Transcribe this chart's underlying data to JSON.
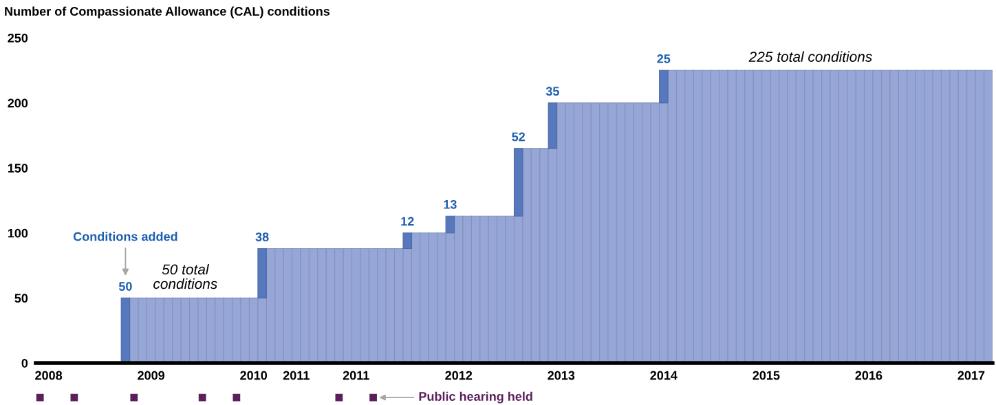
{
  "chart_data": [
    {
      "type": "bar",
      "title": "Number of Compassionate Allowance (CAL) conditions",
      "stacked": true,
      "grid": false,
      "legend": false,
      "categories": [
        null,
        "2008",
        null,
        null,
        null,
        null,
        null,
        null,
        null,
        null,
        null,
        null,
        null,
        "2009",
        null,
        null,
        null,
        null,
        null,
        null,
        null,
        null,
        null,
        null,
        null,
        "2010",
        null,
        null,
        null,
        null,
        "2011",
        null,
        null,
        null,
        null,
        null,
        null,
        "2011",
        null,
        null,
        null,
        null,
        null,
        null,
        null,
        null,
        null,
        null,
        null,
        "2012",
        null,
        null,
        null,
        null,
        null,
        null,
        null,
        null,
        null,
        null,
        null,
        "2013",
        null,
        null,
        null,
        null,
        null,
        null,
        null,
        null,
        null,
        null,
        null,
        "2014",
        null,
        null,
        null,
        null,
        null,
        null,
        null,
        null,
        null,
        null,
        null,
        "2015",
        null,
        null,
        null,
        null,
        null,
        null,
        null,
        null,
        null,
        null,
        null,
        "2016",
        null,
        null,
        null,
        null,
        null,
        null,
        null,
        null,
        null,
        null,
        null,
        "2017",
        null,
        null
      ],
      "ylim": [
        0,
        250
      ],
      "yticks": [
        0,
        50,
        100,
        150,
        200,
        250
      ],
      "series": [
        {
          "color": "#96a6d6",
          "values": [
            null,
            null,
            null,
            null,
            null,
            null,
            null,
            null,
            null,
            null,
            0,
            50,
            50,
            50,
            50,
            50,
            50,
            50,
            50,
            50,
            50,
            50,
            50,
            50,
            50,
            50,
            50,
            88,
            88,
            88,
            88,
            88,
            88,
            88,
            88,
            88,
            88,
            88,
            88,
            88,
            88,
            88,
            88,
            88,
            100,
            100,
            100,
            100,
            100,
            113,
            113,
            113,
            113,
            113,
            113,
            113,
            113,
            165,
            165,
            165,
            165,
            200,
            200,
            200,
            200,
            200,
            200,
            200,
            200,
            200,
            200,
            200,
            200,
            200,
            225,
            225,
            225,
            225,
            225,
            225,
            225,
            225,
            225,
            225,
            225,
            225,
            225,
            225,
            225,
            225,
            225,
            225,
            225,
            225,
            225,
            225,
            225,
            225,
            225,
            225,
            225,
            225,
            225,
            225,
            225,
            225,
            225,
            225,
            225,
            225,
            225,
            225
          ]
        },
        {
          "color": "#5878bd",
          "values": [
            null,
            null,
            null,
            null,
            null,
            null,
            null,
            null,
            null,
            null,
            50,
            null,
            null,
            null,
            null,
            null,
            null,
            null,
            null,
            null,
            null,
            null,
            null,
            null,
            null,
            null,
            38,
            null,
            null,
            null,
            null,
            null,
            null,
            null,
            null,
            null,
            null,
            null,
            null,
            null,
            null,
            null,
            null,
            12,
            null,
            null,
            null,
            null,
            13,
            null,
            null,
            null,
            null,
            null,
            null,
            null,
            52,
            null,
            null,
            null,
            35,
            null,
            null,
            null,
            null,
            null,
            null,
            null,
            null,
            null,
            null,
            null,
            null,
            25,
            null,
            null,
            null,
            null,
            null,
            null,
            null,
            null,
            null,
            null,
            null,
            null,
            null,
            null,
            null,
            null,
            null,
            null,
            null,
            null,
            null,
            null,
            null,
            null,
            null,
            null,
            null,
            null,
            null,
            null,
            null,
            null,
            null,
            null,
            null,
            null,
            null,
            null
          ],
          "value_labels": [
            null,
            null,
            null,
            null,
            null,
            null,
            null,
            null,
            null,
            null,
            "50",
            null,
            null,
            null,
            null,
            null,
            null,
            null,
            null,
            null,
            null,
            null,
            null,
            null,
            null,
            null,
            "38",
            null,
            null,
            null,
            null,
            null,
            null,
            null,
            null,
            null,
            null,
            null,
            null,
            null,
            null,
            null,
            null,
            "12",
            null,
            null,
            null,
            null,
            "13",
            null,
            null,
            null,
            null,
            null,
            null,
            null,
            "52",
            null,
            null,
            null,
            "35",
            null,
            null,
            null,
            null,
            null,
            null,
            null,
            null,
            null,
            null,
            null,
            null,
            "25",
            null,
            null,
            null,
            null,
            null,
            null,
            null,
            null,
            null,
            null,
            null,
            null,
            null,
            null,
            null,
            null,
            null,
            null,
            null,
            null,
            null,
            null,
            null,
            null,
            null,
            null,
            null,
            null,
            null,
            null,
            null,
            null,
            null,
            null,
            null,
            null,
            null,
            null
          ]
        }
      ],
      "annotations": [
        "Conditions added",
        "50 total\nconditions",
        "225 total conditions",
        "Public hearing held"
      ]
    }
  ]
}
